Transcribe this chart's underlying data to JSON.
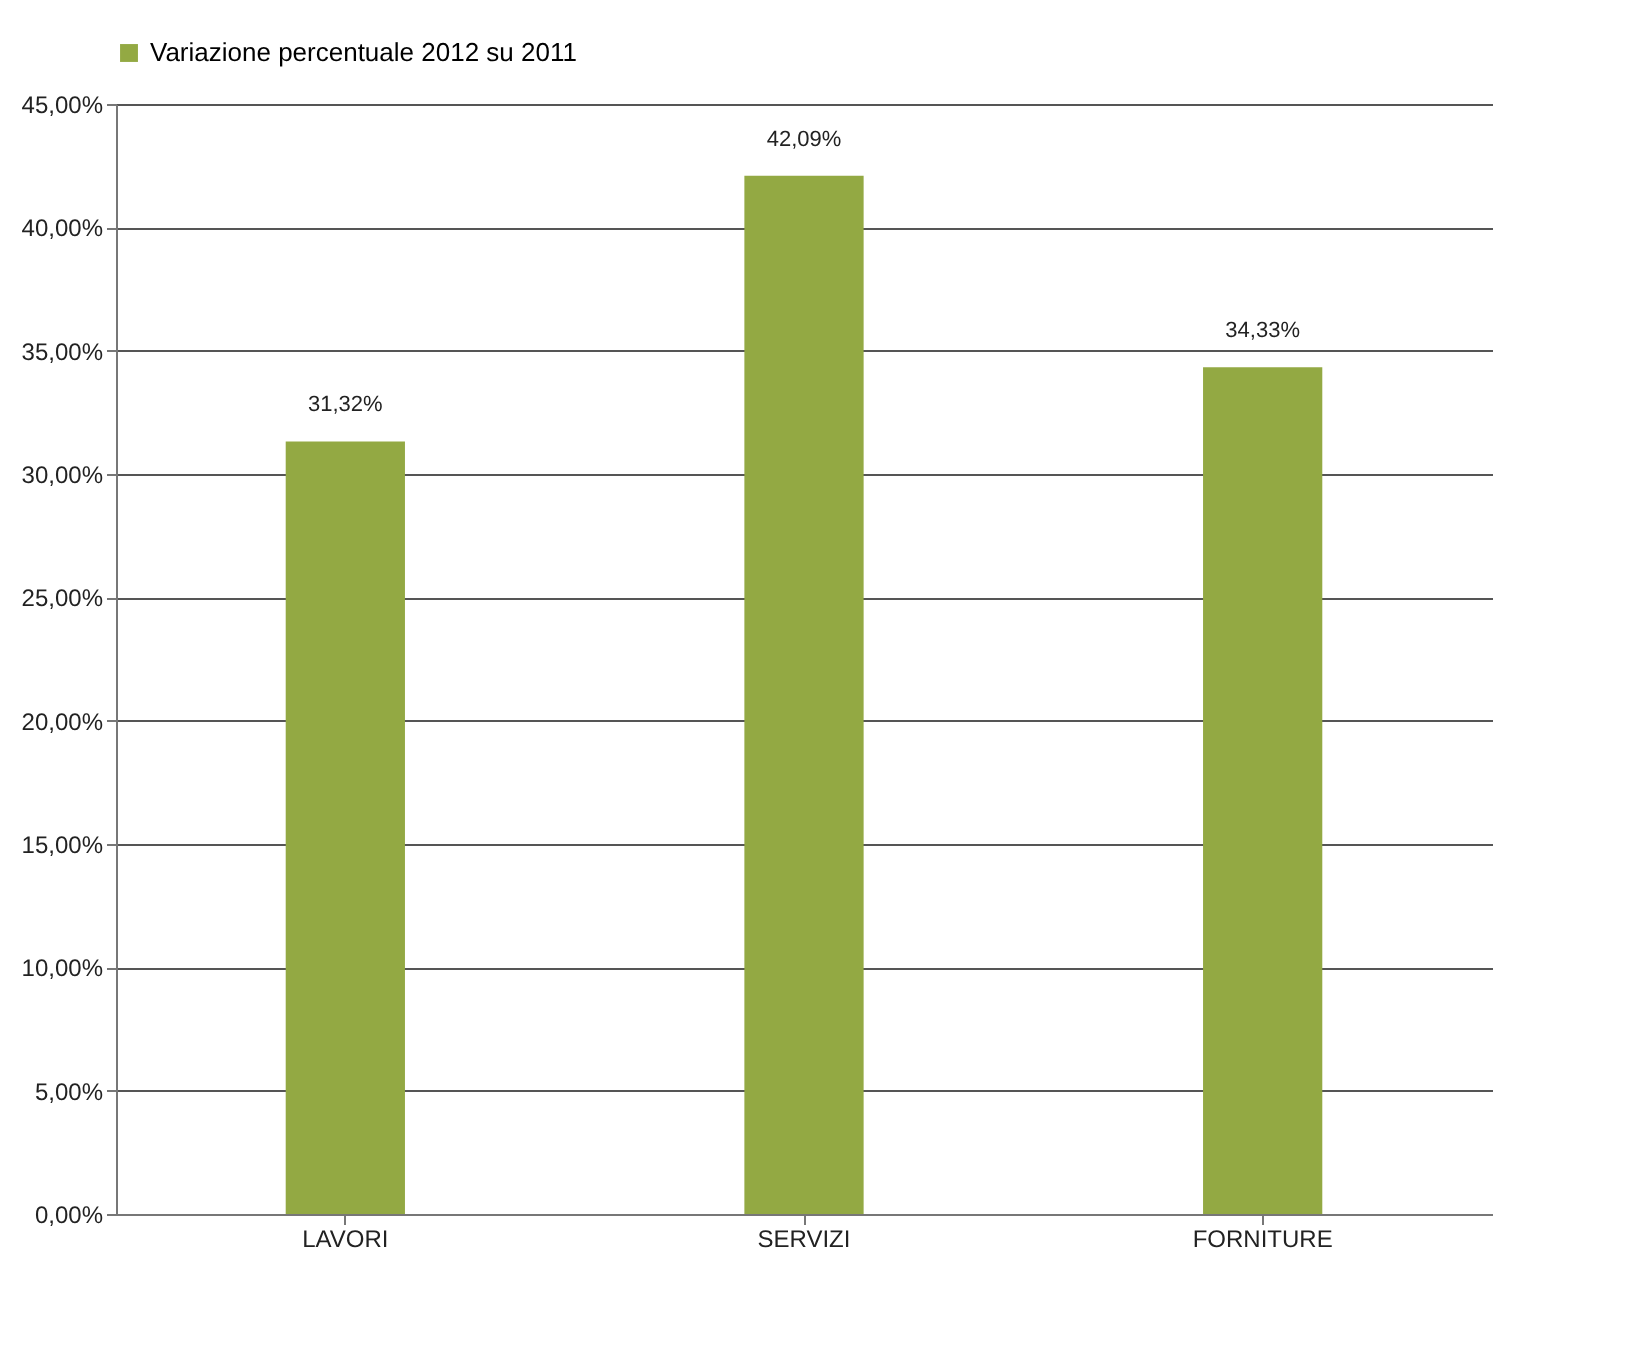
{
  "chart_data": {
    "type": "bar",
    "categories": [
      "LAVORI",
      "SERVIZI",
      "FORNITURE"
    ],
    "series": [
      {
        "name": "Variazione percentuale 2012 su 2011",
        "color": "#93a943",
        "values": [
          31.32,
          42.09,
          34.33
        ],
        "value_labels": [
          "31,32%",
          "42,09%",
          "34,33%"
        ]
      }
    ],
    "ylim": [
      0,
      45
    ],
    "yticks": [
      {
        "value": 0,
        "label": "0,00%"
      },
      {
        "value": 5,
        "label": "5,00%"
      },
      {
        "value": 10,
        "label": "10,00%"
      },
      {
        "value": 15,
        "label": "15,00%"
      },
      {
        "value": 20,
        "label": "20,00%"
      },
      {
        "value": 25,
        "label": "25,00%"
      },
      {
        "value": 30,
        "label": "30,00%"
      },
      {
        "value": 35,
        "label": "35,00%"
      },
      {
        "value": 40,
        "label": "40,00%"
      },
      {
        "value": 45,
        "label": "45,00%"
      }
    ],
    "grid": "y",
    "legend": "top"
  }
}
